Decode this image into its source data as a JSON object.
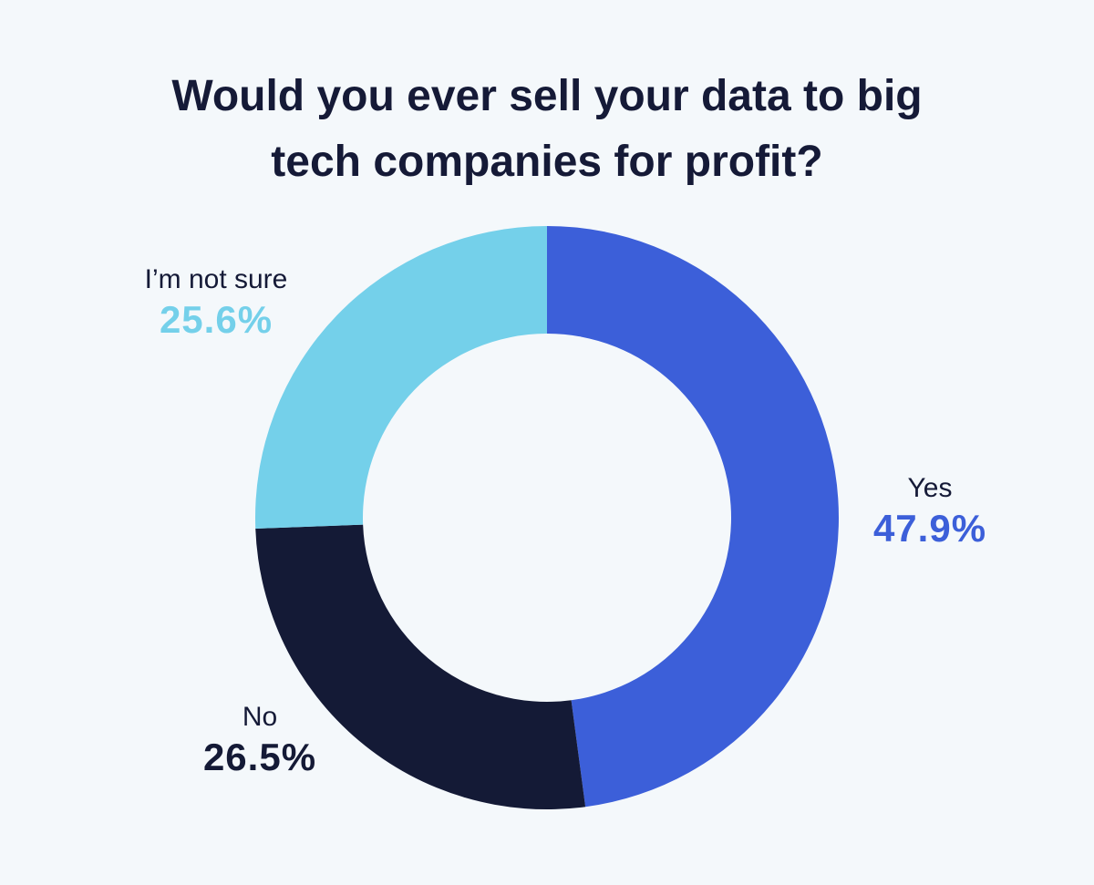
{
  "chart_data": {
    "type": "pie",
    "style": "donut",
    "title_lines": [
      "Would you ever sell your data to big",
      "tech companies for profit?"
    ],
    "slices": [
      {
        "label": "Yes",
        "value": 47.9,
        "display": "47.9%",
        "color": "#3c5fd9"
      },
      {
        "label": "No",
        "value": 26.5,
        "display": "26.5%",
        "color": "#141a36"
      },
      {
        "label": "I’m not sure",
        "value": 25.6,
        "display": "25.6%",
        "color": "#74d0ea"
      }
    ]
  },
  "colors": {
    "background": "#f4f8fb",
    "text": "#151a37"
  }
}
